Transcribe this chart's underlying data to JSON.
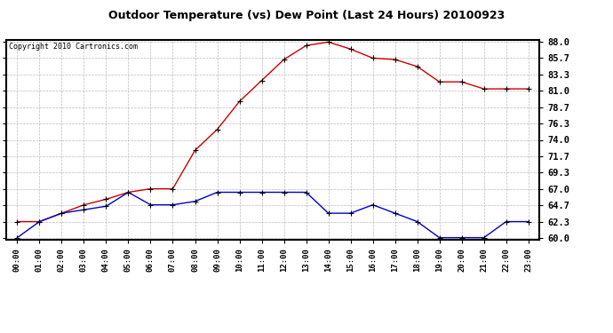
{
  "title": "Outdoor Temperature (vs) Dew Point (Last 24 Hours) 20100923",
  "copyright": "Copyright 2010 Cartronics.com",
  "hours": [
    "00:00",
    "01:00",
    "02:00",
    "03:00",
    "04:00",
    "05:00",
    "06:00",
    "07:00",
    "08:00",
    "09:00",
    "10:00",
    "11:00",
    "12:00",
    "13:00",
    "14:00",
    "15:00",
    "16:00",
    "17:00",
    "18:00",
    "19:00",
    "20:00",
    "21:00",
    "22:00",
    "23:00"
  ],
  "temp": [
    62.3,
    62.3,
    63.5,
    64.7,
    65.5,
    66.5,
    67.0,
    67.0,
    72.5,
    75.5,
    79.5,
    82.5,
    85.5,
    87.5,
    88.0,
    87.0,
    85.7,
    85.5,
    84.5,
    82.3,
    82.3,
    81.3,
    81.3,
    81.3
  ],
  "dew": [
    60.0,
    62.3,
    63.5,
    64.0,
    64.5,
    66.5,
    64.7,
    64.7,
    65.2,
    66.5,
    66.5,
    66.5,
    66.5,
    66.5,
    63.5,
    63.5,
    64.7,
    63.5,
    62.3,
    60.0,
    60.0,
    60.0,
    62.3,
    62.3
  ],
  "temp_color": "#cc0000",
  "dew_color": "#0000cc",
  "bg_color": "#ffffff",
  "plot_bg_color": "#ffffff",
  "grid_color": "#bbbbbb",
  "title_color": "#000000",
  "ylim": [
    60.0,
    88.0
  ],
  "yticks": [
    60.0,
    62.3,
    64.7,
    67.0,
    69.3,
    71.7,
    74.0,
    76.3,
    78.7,
    81.0,
    83.3,
    85.7,
    88.0
  ]
}
